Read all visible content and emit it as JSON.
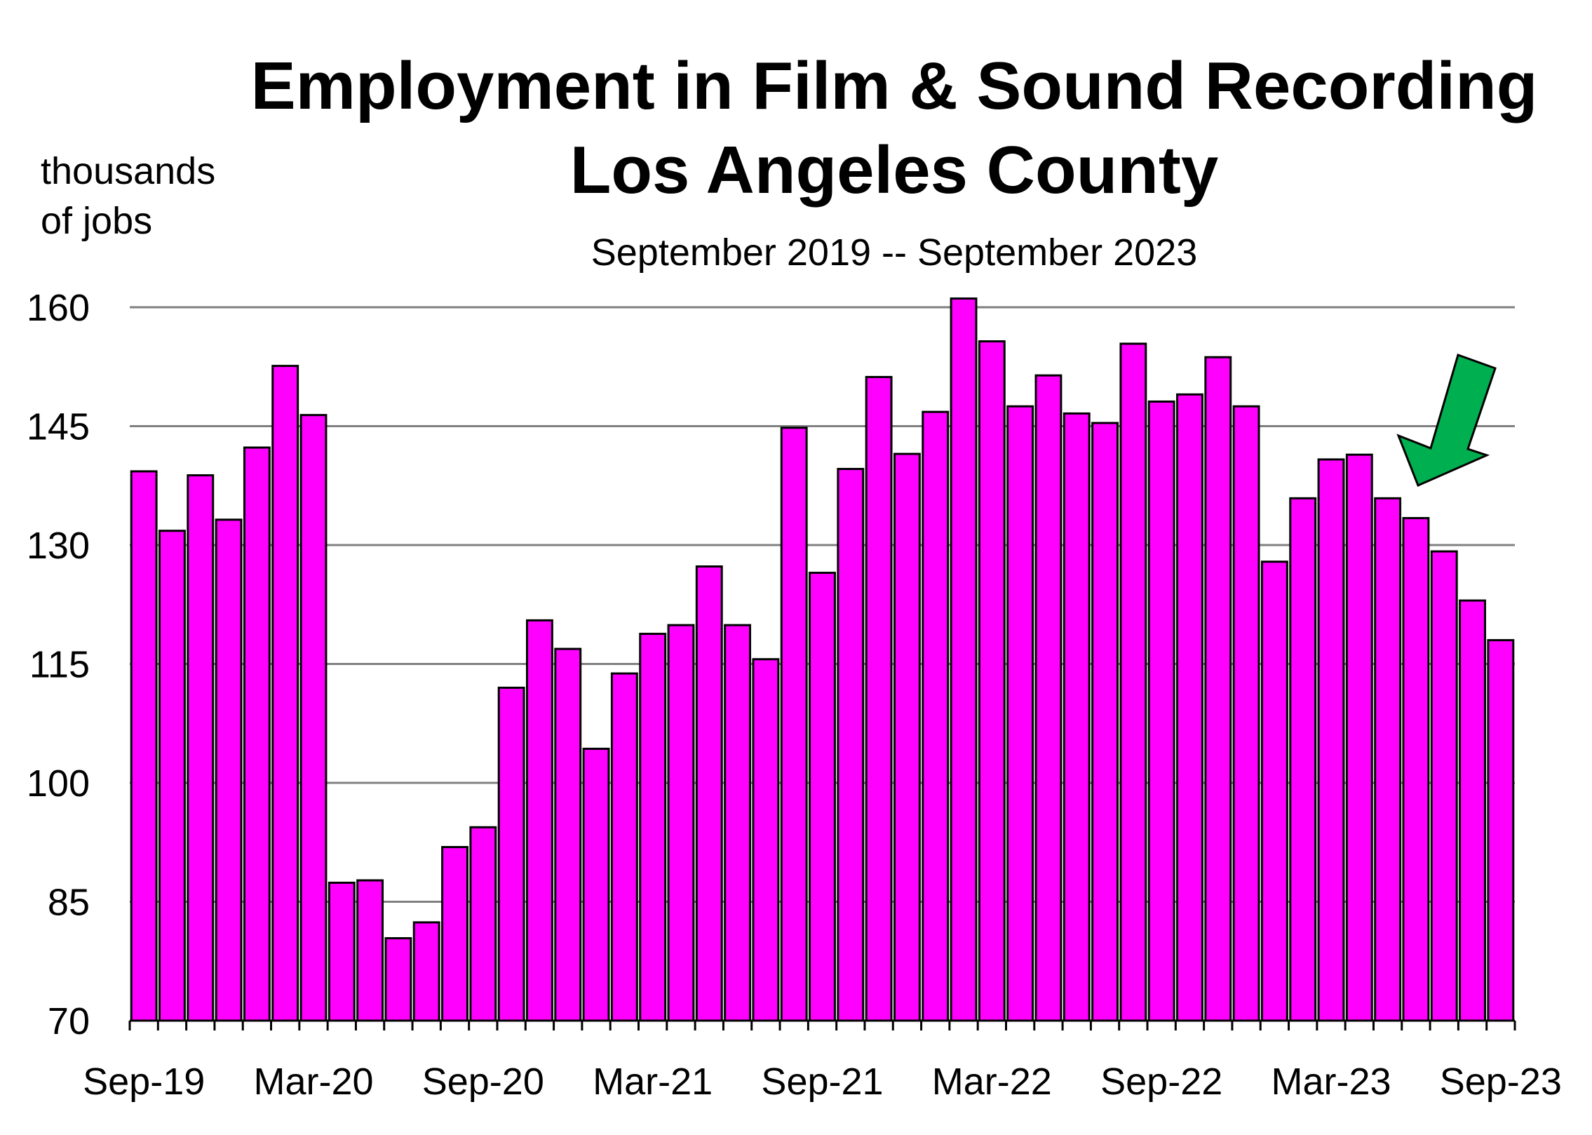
{
  "chart_data": {
    "type": "bar",
    "title_line1": "Employment in Film & Sound Recording",
    "title_line2": "Los Angeles County",
    "subtitle": "September 2019 -- September 2023",
    "ylabel_line1": "thousands",
    "ylabel_line2": "of jobs",
    "ylim": [
      70,
      160
    ],
    "yticks": [
      70,
      85,
      100,
      115,
      130,
      145,
      160
    ],
    "xtick_labels": [
      "Sep-19",
      "Mar-20",
      "Sep-20",
      "Mar-21",
      "Sep-21",
      "Mar-22",
      "Sep-22",
      "Mar-23",
      "Sep-23"
    ],
    "grid": true,
    "bar_color": "#ff00ff",
    "arrow_color": "#00b050",
    "categories": [
      "Sep-19",
      "Oct-19",
      "Nov-19",
      "Dec-19",
      "Jan-20",
      "Feb-20",
      "Mar-20",
      "Apr-20",
      "May-20",
      "Jun-20",
      "Jul-20",
      "Aug-20",
      "Sep-20",
      "Oct-20",
      "Nov-20",
      "Dec-20",
      "Jan-21",
      "Feb-21",
      "Mar-21",
      "Apr-21",
      "May-21",
      "Jun-21",
      "Jul-21",
      "Aug-21",
      "Sep-21",
      "Oct-21",
      "Nov-21",
      "Dec-21",
      "Jan-22",
      "Feb-22",
      "Mar-22",
      "Apr-22",
      "May-22",
      "Jun-22",
      "Jul-22",
      "Aug-22",
      "Sep-22",
      "Oct-22",
      "Nov-22",
      "Dec-22",
      "Jan-23",
      "Feb-23",
      "Mar-23",
      "Apr-23",
      "May-23",
      "Jun-23",
      "Jul-23",
      "Aug-23",
      "Sep-23"
    ],
    "values": [
      139.3,
      131.8,
      138.8,
      133.2,
      142.3,
      152.6,
      146.4,
      87.4,
      87.7,
      80.4,
      82.4,
      91.9,
      94.4,
      112.0,
      120.5,
      116.9,
      104.3,
      113.8,
      118.8,
      119.9,
      127.3,
      119.9,
      115.6,
      144.8,
      126.5,
      139.6,
      151.2,
      141.5,
      146.8,
      161.1,
      155.7,
      147.5,
      151.4,
      146.6,
      145.4,
      155.4,
      148.1,
      149.0,
      153.7,
      147.5,
      127.9,
      135.9,
      140.8,
      141.4,
      135.9,
      133.4,
      129.2,
      123.0,
      118.0
    ]
  }
}
